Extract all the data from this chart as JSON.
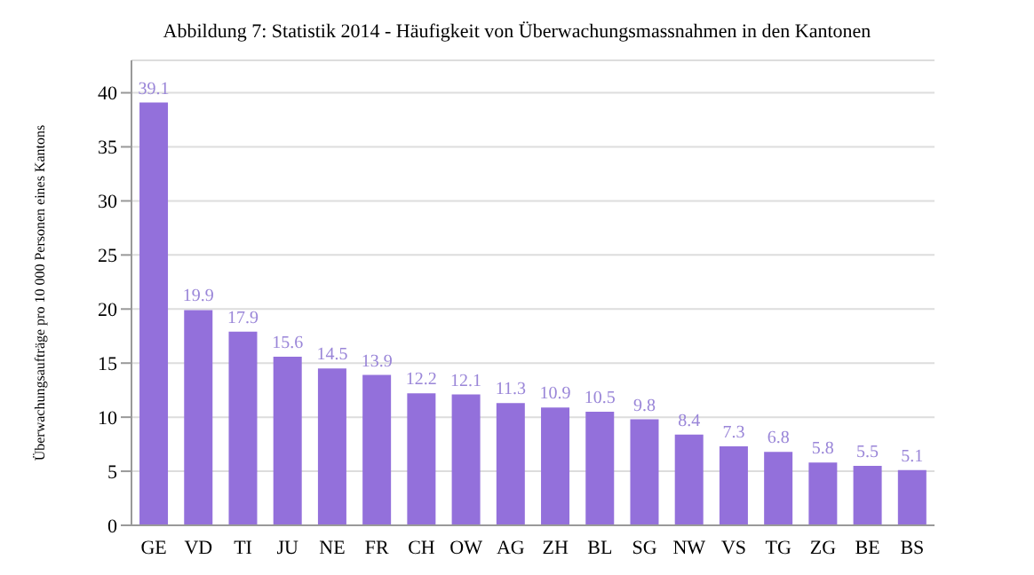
{
  "chart_data": {
    "type": "bar",
    "title": "Abbildung 7: Statistik 2014 - Häufigkeit von Überwachungsmassnahmen in den Kantonen",
    "ylabel": "Überwachungsaufträge pro 10 000 Personen eines Kantons",
    "categories": [
      "GE",
      "VD",
      "TI",
      "JU",
      "NE",
      "FR",
      "CH",
      "OW",
      "AG",
      "ZH",
      "BL",
      "SG",
      "NW",
      "VS",
      "TG",
      "ZG",
      "BE",
      "BS"
    ],
    "series": [
      {
        "color": "#9370db",
        "values": [
          39.1,
          19.9,
          17.9,
          15.6,
          14.5,
          13.9,
          12.2,
          12.1,
          11.3,
          10.9,
          10.5,
          9.8,
          8.4,
          7.3,
          6.8,
          5.8,
          5.5,
          5.1
        ]
      }
    ],
    "ylim": [
      0,
      43
    ],
    "yticks": [
      0,
      5,
      10,
      15,
      20,
      25,
      30,
      35,
      40
    ],
    "grid": "y",
    "data_labels": true
  }
}
